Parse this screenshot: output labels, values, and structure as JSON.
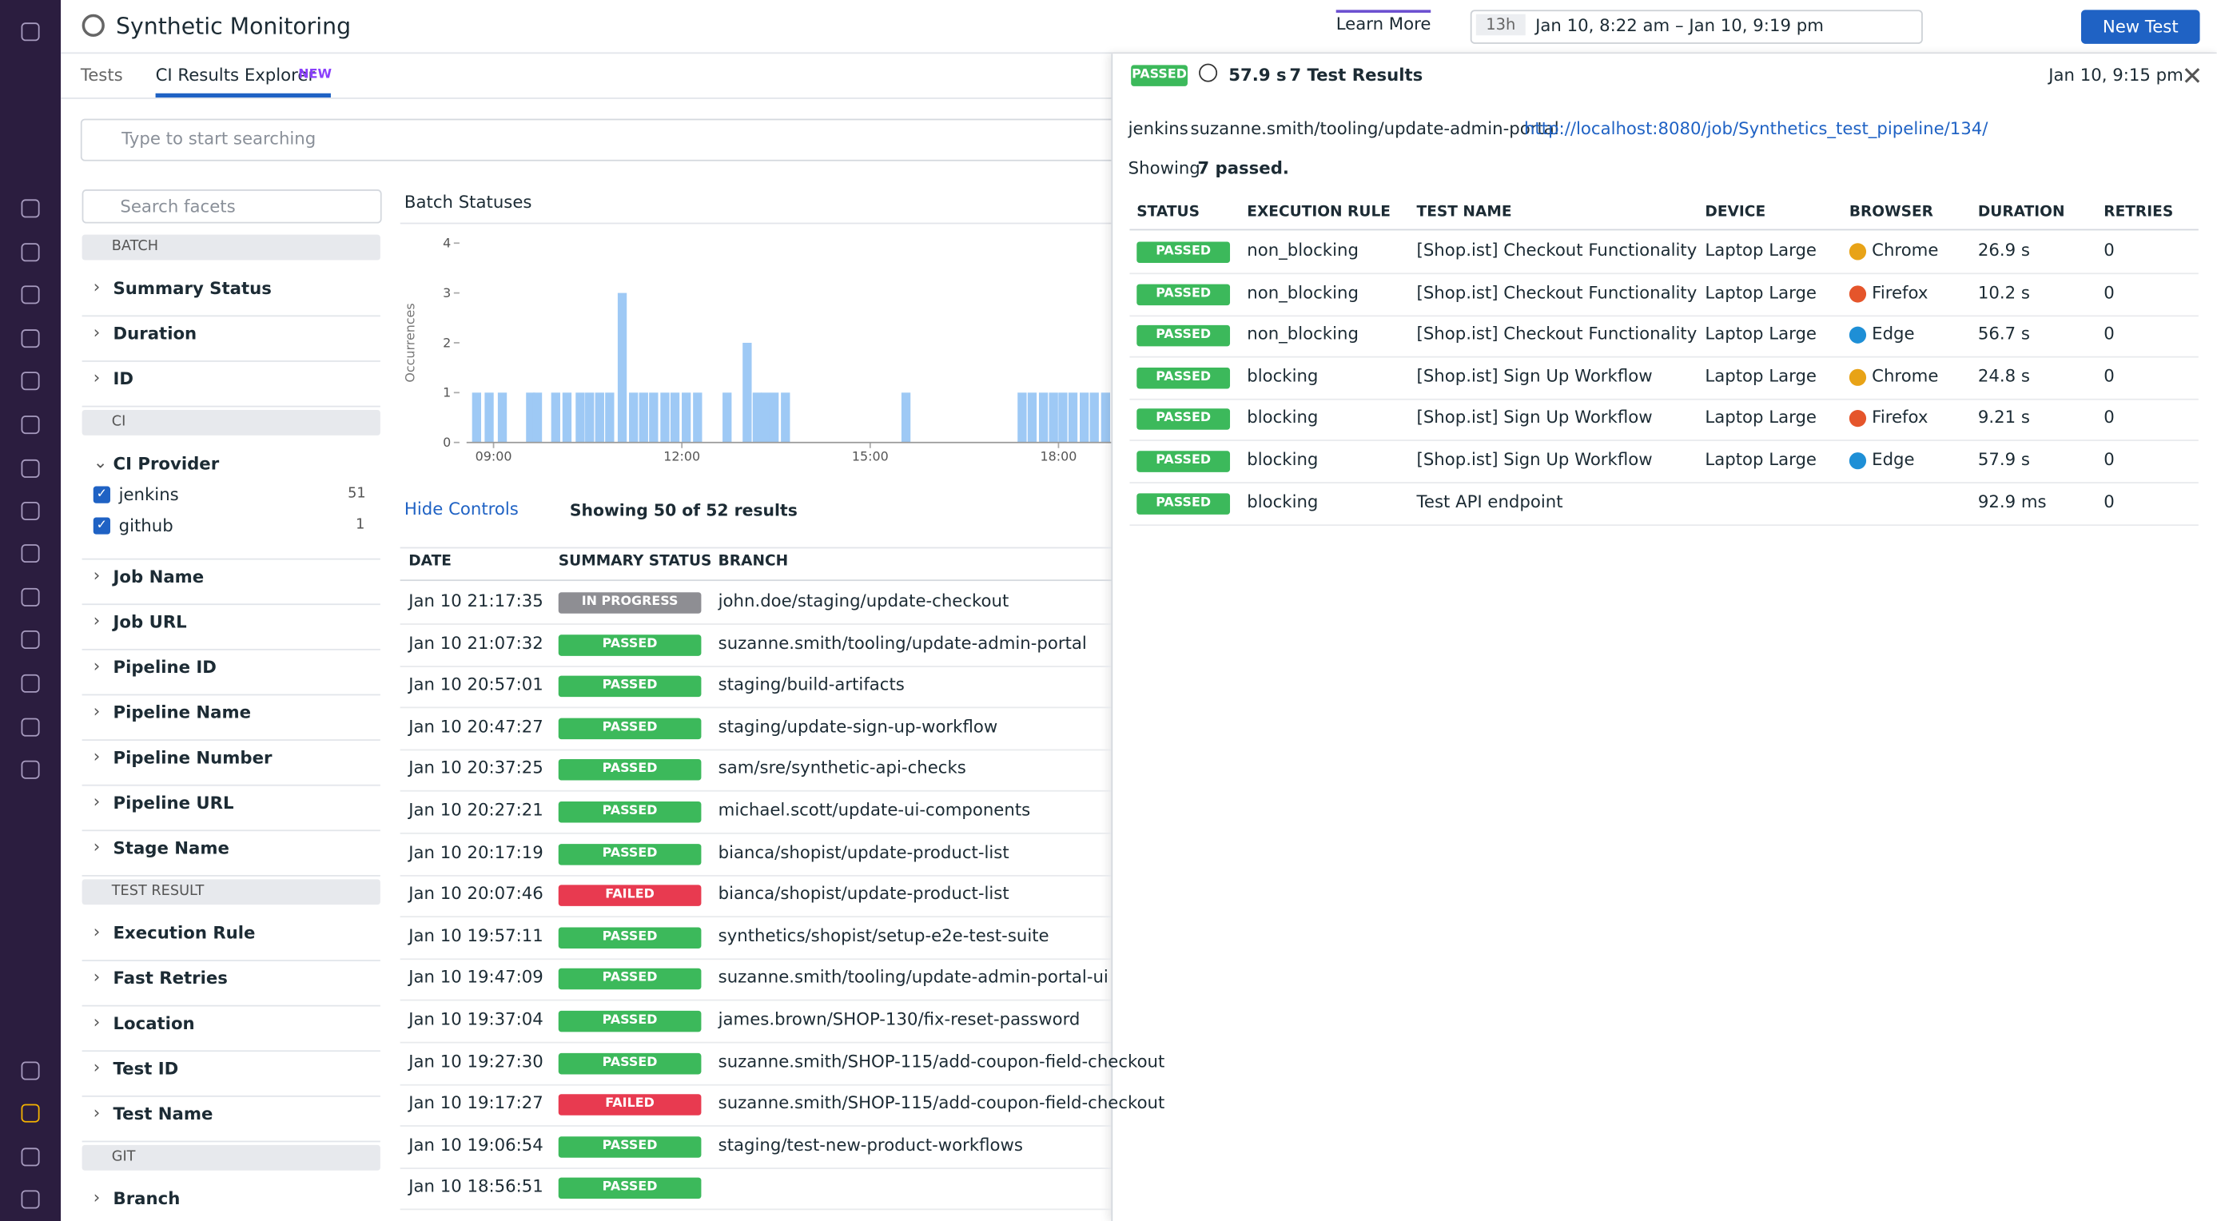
{
  "header": {
    "title": "Synthetic Monitoring",
    "learn_more": "Learn More",
    "time_badge": "13h",
    "time_range": "Jan 10, 8:22 am – Jan 10, 9:19 pm",
    "new_test": "New Test"
  },
  "tabs": {
    "items": [
      "Tests",
      "CI Results Explorer"
    ],
    "new_badge": "NEW"
  },
  "search_placeholder": "Type to start searching",
  "facets": {
    "search_placeholder": "Search facets",
    "groups": [
      {
        "title": "BATCH",
        "items": [
          {
            "name": "Summary Status"
          },
          {
            "name": "Duration"
          },
          {
            "name": "ID"
          }
        ]
      },
      {
        "title": "CI",
        "items": [
          {
            "name": "CI Provider",
            "options": [
              {
                "label": "jenkins",
                "count": 51
              },
              {
                "label": "github",
                "count": 1
              }
            ]
          },
          {
            "name": "Job Name"
          },
          {
            "name": "Job URL"
          },
          {
            "name": "Pipeline ID"
          },
          {
            "name": "Pipeline Name"
          },
          {
            "name": "Pipeline Number"
          },
          {
            "name": "Pipeline URL"
          },
          {
            "name": "Stage Name"
          }
        ]
      },
      {
        "title": "TEST RESULT",
        "items": [
          {
            "name": "Execution Rule"
          },
          {
            "name": "Fast Retries"
          },
          {
            "name": "Location"
          },
          {
            "name": "Test ID"
          },
          {
            "name": "Test Name"
          }
        ]
      },
      {
        "title": "GIT",
        "items": [
          {
            "name": "Branch"
          }
        ]
      }
    ]
  },
  "chart_data": {
    "type": "bar",
    "title": "Batch Statuses",
    "y_label": "Occurrences",
    "color": "#9ec9f5",
    "x": [
      8.73,
      8.93,
      9.14,
      9.59,
      9.7,
      9.99,
      10.17,
      10.38,
      10.53,
      10.69,
      10.85,
      11.05,
      11.23,
      11.39,
      11.55,
      11.73,
      11.89,
      12.07,
      12.25,
      12.72,
      13.04,
      13.2,
      13.33,
      13.47,
      13.65,
      15.57,
      17.42,
      17.58,
      17.76,
      17.92,
      18.07,
      18.23,
      18.41,
      18.57,
      18.75
    ],
    "values": [
      1,
      1,
      1,
      1,
      1,
      1,
      1,
      1,
      1,
      1,
      1,
      3,
      1,
      1,
      1,
      1,
      1,
      1,
      1,
      1,
      2,
      1,
      1,
      1,
      1,
      1,
      1,
      1,
      1,
      1,
      1,
      1,
      1,
      1,
      1
    ],
    "xlim": [
      8.57,
      18.84
    ],
    "xticks": [
      {
        "value": 9,
        "label": "09:00"
      },
      {
        "value": 12,
        "label": "12:00"
      },
      {
        "value": 15,
        "label": "15:00"
      },
      {
        "value": 18,
        "label": "18:00"
      }
    ],
    "ylim": [
      0,
      4
    ],
    "yticks": [
      0,
      1,
      2,
      3,
      4
    ]
  },
  "controls": {
    "hide": "Hide Controls",
    "showing": "Showing 50 of 52 results"
  },
  "results": {
    "columns": [
      "DATE",
      "SUMMARY STATUS",
      "BRANCH"
    ],
    "rows": [
      {
        "date": "Jan 10 21:17:35",
        "status": "IN PROGRESS",
        "branch": "john.doe/staging/update-checkout"
      },
      {
        "date": "Jan 10 21:07:32",
        "status": "PASSED",
        "branch": "suzanne.smith/tooling/update-admin-portal"
      },
      {
        "date": "Jan 10 20:57:01",
        "status": "PASSED",
        "branch": "staging/build-artifacts"
      },
      {
        "date": "Jan 10 20:47:27",
        "status": "PASSED",
        "branch": "staging/update-sign-up-workflow"
      },
      {
        "date": "Jan 10 20:37:25",
        "status": "PASSED",
        "branch": "sam/sre/synthetic-api-checks"
      },
      {
        "date": "Jan 10 20:27:21",
        "status": "PASSED",
        "branch": "michael.scott/update-ui-components"
      },
      {
        "date": "Jan 10 20:17:19",
        "status": "PASSED",
        "branch": "bianca/shopist/update-product-list"
      },
      {
        "date": "Jan 10 20:07:46",
        "status": "FAILED",
        "branch": "bianca/shopist/update-product-list"
      },
      {
        "date": "Jan 10 19:57:11",
        "status": "PASSED",
        "branch": "synthetics/shopist/setup-e2e-test-suite"
      },
      {
        "date": "Jan 10 19:47:09",
        "status": "PASSED",
        "branch": "suzanne.smith/tooling/update-admin-portal-ui"
      },
      {
        "date": "Jan 10 19:37:04",
        "status": "PASSED",
        "branch": "james.brown/SHOP-130/fix-reset-password"
      },
      {
        "date": "Jan 10 19:27:30",
        "status": "PASSED",
        "branch": "suzanne.smith/SHOP-115/add-coupon-field-checkout"
      },
      {
        "date": "Jan 10 19:17:27",
        "status": "FAILED",
        "branch": "suzanne.smith/SHOP-115/add-coupon-field-checkout"
      },
      {
        "date": "Jan 10 19:06:54",
        "status": "PASSED",
        "branch": "staging/test-new-product-workflows"
      },
      {
        "date": "Jan 10 18:56:51",
        "status": "PASSED"
      }
    ]
  },
  "panel": {
    "status": "PASSED",
    "duration": "57.9 s",
    "results": "7 Test Results",
    "timestamp": "Jan 10, 9:15 pm",
    "provider": "jenkins",
    "branch": "suzanne.smith/tooling/update-admin-portal",
    "url": "http://localhost:8080/job/Synthetics_test_pipeline/134/",
    "showing": "Showing",
    "showing_bold": "7 passed.",
    "columns": [
      "STATUS",
      "EXECUTION RULE",
      "TEST NAME",
      "DEVICE",
      "BROWSER",
      "DURATION",
      "RETRIES"
    ],
    "rows": [
      {
        "status": "PASSED",
        "rule": "non_blocking",
        "name": "[Shop.ist] Checkout Functionality",
        "device": "Laptop Large",
        "browser": "Chrome",
        "duration": "26.9 s",
        "retries": "0"
      },
      {
        "status": "PASSED",
        "rule": "non_blocking",
        "name": "[Shop.ist] Checkout Functionality",
        "device": "Laptop Large",
        "browser": "Firefox",
        "duration": "10.2 s",
        "retries": "0"
      },
      {
        "status": "PASSED",
        "rule": "non_blocking",
        "name": "[Shop.ist] Checkout Functionality",
        "device": "Laptop Large",
        "browser": "Edge",
        "duration": "56.7 s",
        "retries": "0"
      },
      {
        "status": "PASSED",
        "rule": "blocking",
        "name": "[Shop.ist] Sign Up Workflow",
        "device": "Laptop Large",
        "browser": "Chrome",
        "duration": "24.8 s",
        "retries": "0"
      },
      {
        "status": "PASSED",
        "rule": "blocking",
        "name": "[Shop.ist] Sign Up Workflow",
        "device": "Laptop Large",
        "browser": "Firefox",
        "duration": "9.21 s",
        "retries": "0"
      },
      {
        "status": "PASSED",
        "rule": "blocking",
        "name": "[Shop.ist] Sign Up Workflow",
        "device": "Laptop Large",
        "browser": "Edge",
        "duration": "57.9 s",
        "retries": "0"
      },
      {
        "status": "PASSED",
        "rule": "blocking",
        "name": "Test API endpoint",
        "duration": "92.9 ms",
        "retries": "0"
      }
    ]
  }
}
